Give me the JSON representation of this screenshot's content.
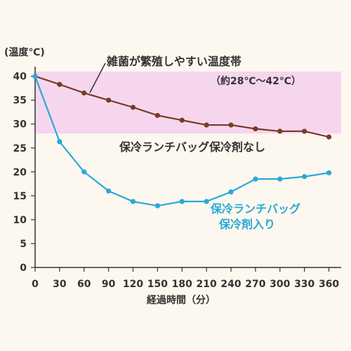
{
  "chart_data": {
    "type": "line",
    "ylabel": "(温度℃)",
    "xlabel": "経過時間（分）",
    "x": [
      0,
      30,
      60,
      90,
      120,
      150,
      180,
      210,
      240,
      270,
      300,
      330,
      360
    ],
    "xlim": [
      0,
      375
    ],
    "ylim": [
      0,
      42
    ],
    "yticks": [
      0,
      5,
      10,
      15,
      20,
      25,
      30,
      35,
      40
    ],
    "band": {
      "from": 28,
      "to": 41,
      "color": "#f6d6ef",
      "label": "雑菌が繁殖しやすい温度帯",
      "range_label": "（約28℃～42℃）"
    },
    "series": [
      {
        "name": "保冷ランチバッグ保冷剤なし",
        "color": "#7a3b26",
        "values": [
          40,
          38.3,
          36.5,
          35,
          33.5,
          31.8,
          30.8,
          29.8,
          29.8,
          29,
          28.5,
          28.5,
          27.3
        ]
      },
      {
        "name": "保冷ランチバッグ\n保冷剤入り",
        "color": "#29a8dc",
        "values": [
          40,
          26.3,
          20,
          16,
          13.8,
          12.9,
          13.8,
          13.8,
          15.8,
          18.5,
          18.5,
          19,
          19.8
        ]
      }
    ],
    "grid": false
  }
}
